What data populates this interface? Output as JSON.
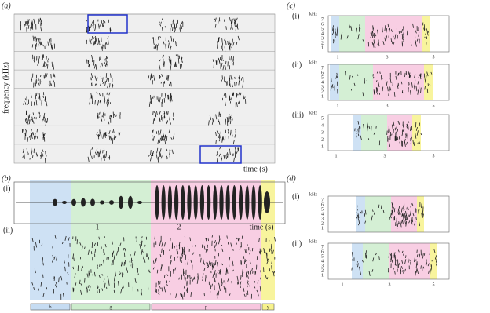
{
  "panel_a": {
    "label": "(a)",
    "y_axis": "frequency (kHz)",
    "x_axis": "time (s)"
  },
  "panel_b": {
    "label": "(b)",
    "subpanels": [
      "(i)",
      "(ii)"
    ],
    "ticks": [
      1,
      2
    ],
    "x_axis": "time (s)",
    "segments": [
      "b",
      "g",
      "p",
      "y"
    ]
  },
  "panel_c": {
    "label": "(c)",
    "plots": [
      {
        "label": "(i)",
        "unit": "kHz",
        "yticks": [
          1,
          2,
          3,
          4,
          5,
          6,
          7
        ],
        "xticks": [
          1,
          3,
          5
        ]
      },
      {
        "label": "(ii)",
        "unit": "kHz",
        "yticks": [
          1,
          2,
          3,
          4,
          5,
          6,
          7
        ],
        "xticks": [
          1,
          3,
          5
        ]
      },
      {
        "label": "(iii)",
        "unit": "kHz",
        "yticks": [
          1,
          2,
          3,
          4,
          5
        ],
        "xticks": [
          1,
          3,
          5
        ]
      }
    ]
  },
  "panel_d": {
    "label": "(d)",
    "plots": [
      {
        "label": "(i)",
        "unit": "kHz",
        "yticks": [
          1,
          2,
          3,
          4,
          5,
          6,
          7
        ]
      },
      {
        "label": "(ii)",
        "unit": "kHz",
        "yticks": [
          1,
          2,
          3,
          4,
          5,
          6,
          7
        ],
        "xticks": [
          1,
          3,
          5
        ]
      }
    ]
  }
}
